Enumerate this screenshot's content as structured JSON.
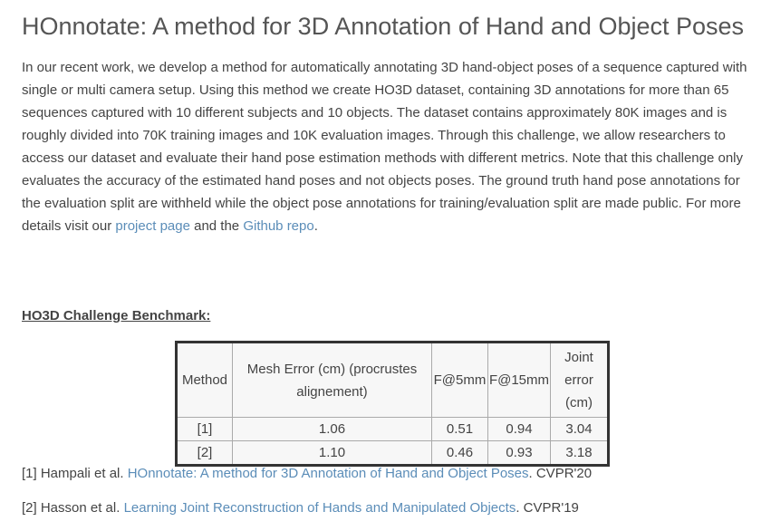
{
  "title": "HOnnotate: A method for 3D Annotation of Hand and Object Poses",
  "intro": {
    "text": "In our recent work, we develop a method for automatically annotating 3D hand-object poses of a sequence captured with single or multi camera setup. Using this method we create HO3D dataset, containing 3D annotations for more than 65 sequences captured with 10 different subjects and 10 objects. The dataset contains approximately 80K images and is roughly divided into 70K training images and 10K evaluation images. Through this challenge, we allow researchers to access our dataset and evaluate their hand pose estimation methods with different metrics. Note that this challenge only evaluates the accuracy of the estimated hand poses and not objects poses. The ground truth hand pose annotations for the evaluation split are withheld while the object pose annotations for training/evaluation split are made public. For more details visit our ",
    "link1": "project page",
    "middle": " and the ",
    "link2": "Github repo",
    "end": "."
  },
  "benchmark": {
    "heading": "HO3D Challenge Benchmark:",
    "table": {
      "header": [
        "Method",
        "Mesh Error (cm) (procrustes alignement)",
        "F@5mm",
        "F@15mm",
        "Joint error (cm)"
      ],
      "rows": [
        [
          "[1]",
          "1.06",
          "0.51",
          "0.94",
          "3.04"
        ],
        [
          "[2]",
          "1.10",
          "0.46",
          "0.93",
          "3.18"
        ]
      ]
    }
  },
  "references": [
    {
      "prefix": "[1] Hampali et al. ",
      "link": "HOnnotate: A method for 3D Annotation of Hand and Object Poses",
      "suffix": ". CVPR'20"
    },
    {
      "prefix": "[2] Hasson et al. ",
      "link": "Learning Joint Reconstruction of Hands and Manipulated Objects",
      "suffix": ". CVPR'19"
    }
  ]
}
